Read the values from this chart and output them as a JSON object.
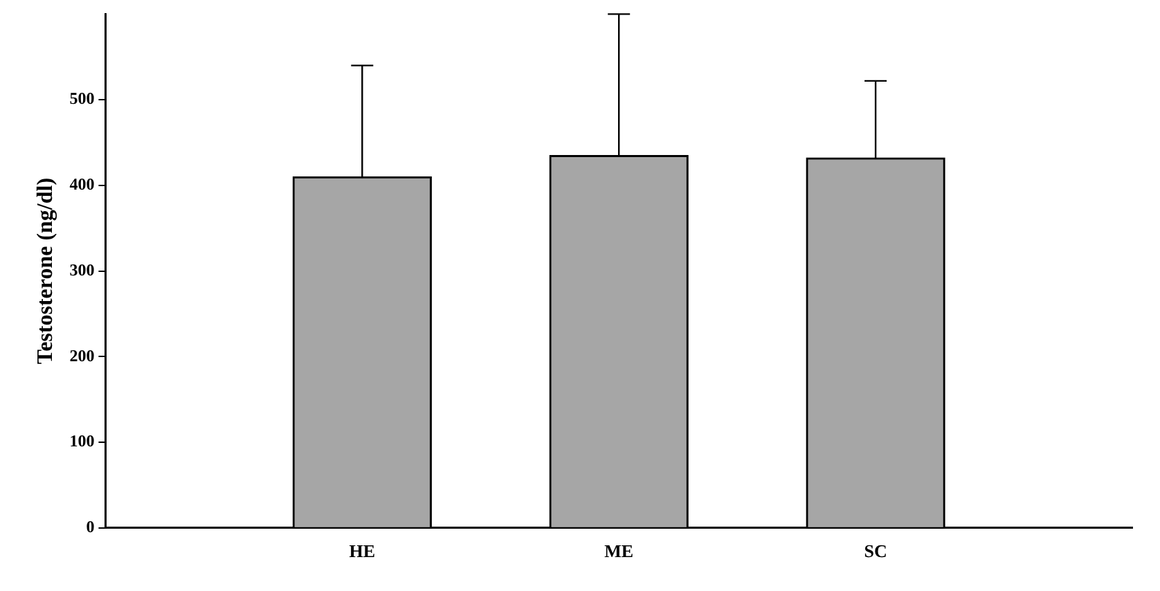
{
  "chart_data": {
    "type": "bar",
    "ylabel": "Testosterone (ng/dl)",
    "categories": [
      null,
      "HE",
      "ME",
      "SC",
      null
    ],
    "values": [
      null,
      410,
      435,
      432,
      null
    ],
    "errors": [
      null,
      [
        410,
        540
      ],
      [
        435,
        600
      ],
      [
        432,
        522
      ],
      null
    ],
    "color": "#a6a6a6",
    "ylim": [
      0,
      600
    ],
    "yticks": [
      0,
      100,
      200,
      300,
      400,
      500
    ],
    "grid": false,
    "legend": false
  }
}
